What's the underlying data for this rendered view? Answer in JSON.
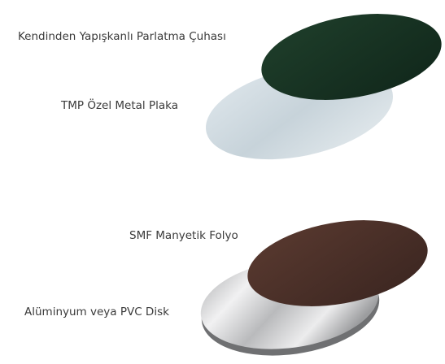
{
  "layers": [
    {
      "label": "Kendinden Yapışkanlı Parlatma Çuhası"
    },
    {
      "label": "TMP Özel Metal Plaka"
    },
    {
      "label": "SMF Manyetik Folyo"
    },
    {
      "label": "Alüminyum veya PVC Disk"
    }
  ]
}
